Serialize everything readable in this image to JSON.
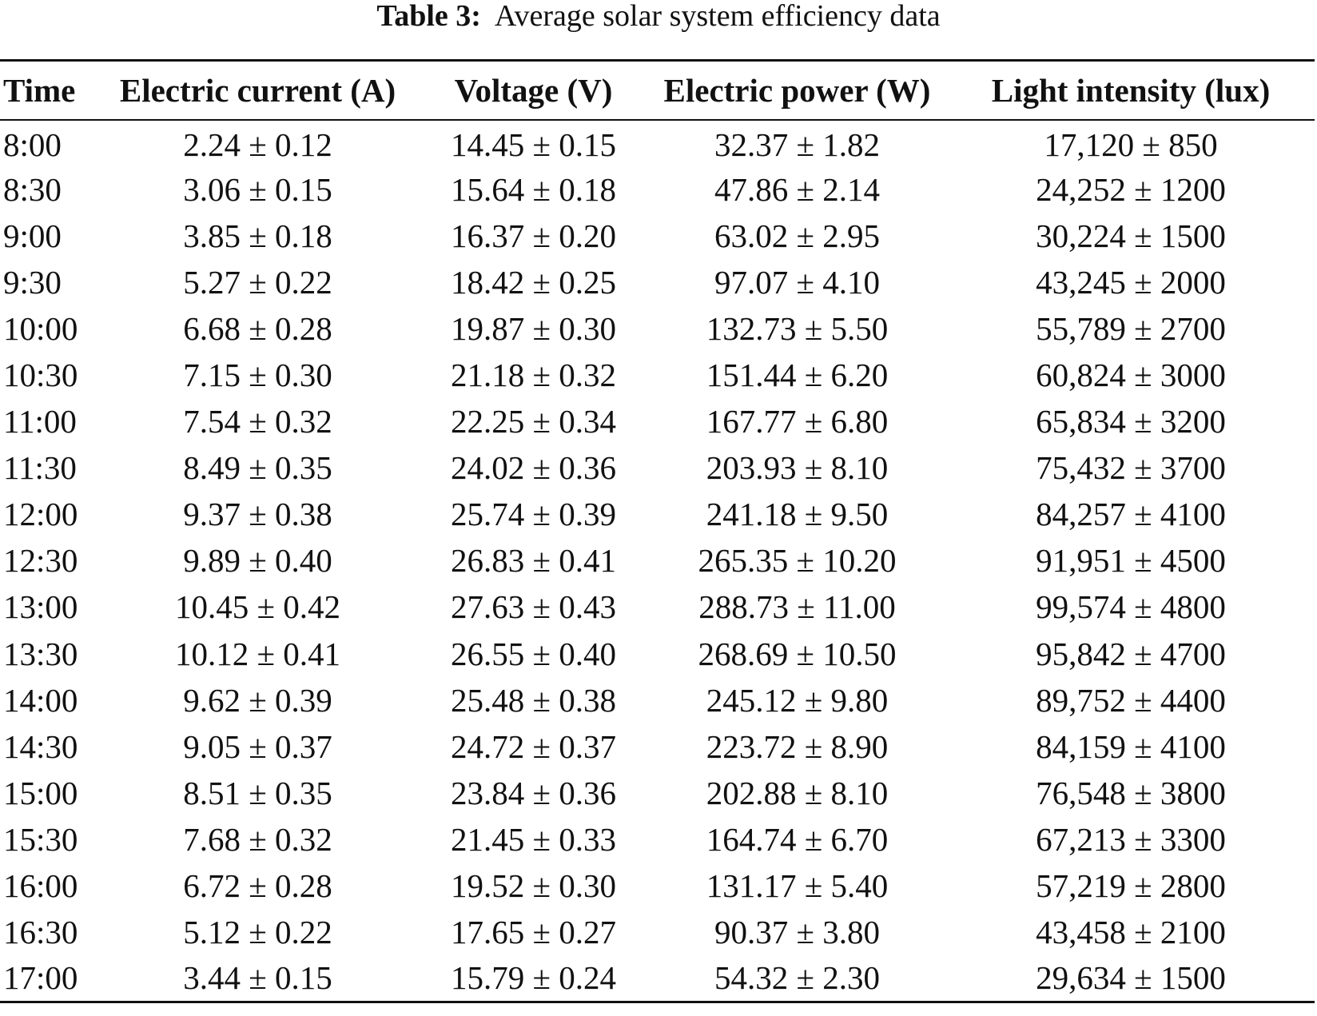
{
  "caption": {
    "label": "Table 3:",
    "text": "Average solar system efficiency data"
  },
  "table": {
    "headers": [
      "Time",
      "Electric current (A)",
      "Voltage (V)",
      "Electric power (W)",
      "Light intensity (lux)"
    ],
    "rows": [
      [
        "8:00",
        "2.24 ± 0.12",
        "14.45 ± 0.15",
        "32.37 ± 1.82",
        "17,120 ± 850"
      ],
      [
        "8:30",
        "3.06 ± 0.15",
        "15.64 ± 0.18",
        "47.86 ± 2.14",
        "24,252 ± 1200"
      ],
      [
        "9:00",
        "3.85 ± 0.18",
        "16.37 ± 0.20",
        "63.02 ± 2.95",
        "30,224 ± 1500"
      ],
      [
        "9:30",
        "5.27 ± 0.22",
        "18.42 ± 0.25",
        "97.07 ± 4.10",
        "43,245 ± 2000"
      ],
      [
        "10:00",
        "6.68 ± 0.28",
        "19.87 ± 0.30",
        "132.73 ± 5.50",
        "55,789 ± 2700"
      ],
      [
        "10:30",
        "7.15 ± 0.30",
        "21.18 ± 0.32",
        "151.44 ± 6.20",
        "60,824 ± 3000"
      ],
      [
        "11:00",
        "7.54 ± 0.32",
        "22.25 ± 0.34",
        "167.77 ± 6.80",
        "65,834 ± 3200"
      ],
      [
        "11:30",
        "8.49 ± 0.35",
        "24.02 ± 0.36",
        "203.93 ± 8.10",
        "75,432 ± 3700"
      ],
      [
        "12:00",
        "9.37 ± 0.38",
        "25.74 ± 0.39",
        "241.18 ± 9.50",
        "84,257 ± 4100"
      ],
      [
        "12:30",
        "9.89 ± 0.40",
        "26.83 ± 0.41",
        "265.35 ± 10.20",
        "91,951 ± 4500"
      ],
      [
        "13:00",
        "10.45 ± 0.42",
        "27.63 ± 0.43",
        "288.73 ± 11.00",
        "99,574 ± 4800"
      ],
      [
        "13:30",
        "10.12 ± 0.41",
        "26.55 ± 0.40",
        "268.69 ± 10.50",
        "95,842 ± 4700"
      ],
      [
        "14:00",
        "9.62 ± 0.39",
        "25.48 ± 0.38",
        "245.12 ± 9.80",
        "89,752 ± 4400"
      ],
      [
        "14:30",
        "9.05 ± 0.37",
        "24.72 ± 0.37",
        "223.72 ± 8.90",
        "84,159 ± 4100"
      ],
      [
        "15:00",
        "8.51 ± 0.35",
        "23.84 ± 0.36",
        "202.88 ± 8.10",
        "76,548 ± 3800"
      ],
      [
        "15:30",
        "7.68 ± 0.32",
        "21.45 ± 0.33",
        "164.74 ± 6.70",
        "67,213 ± 3300"
      ],
      [
        "16:00",
        "6.72 ± 0.28",
        "19.52 ± 0.30",
        "131.17 ± 5.40",
        "57,219 ± 2800"
      ],
      [
        "16:30",
        "5.12 ± 0.22",
        "17.65 ± 0.27",
        "90.37 ± 3.80",
        "43,458 ± 2100"
      ],
      [
        "17:00",
        "3.44 ± 0.15",
        "15.79 ± 0.24",
        "54.32 ± 2.30",
        "29,634 ± 1500"
      ]
    ]
  }
}
